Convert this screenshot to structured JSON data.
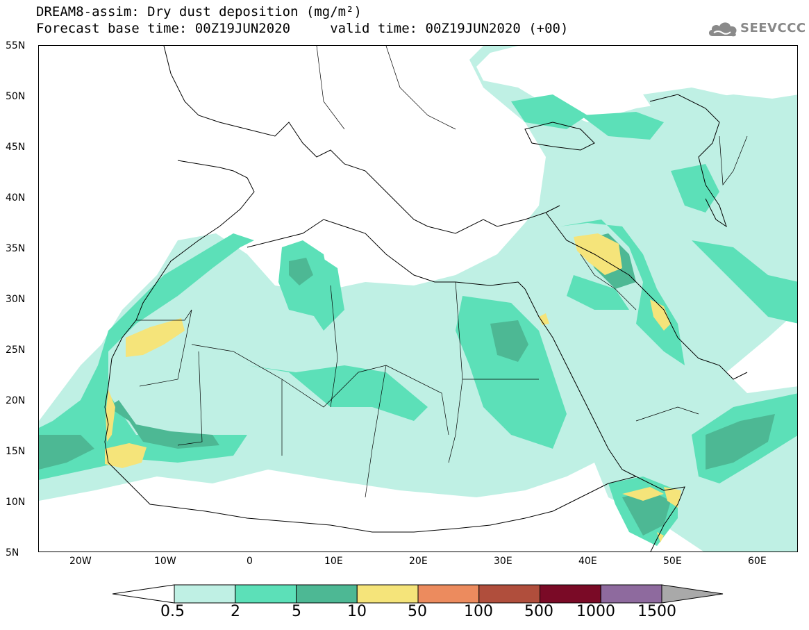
{
  "header": {
    "title_line1": "DREAM8-assim: Dry dust deposition (mg/m²)",
    "title_line2": "Forecast base time: 00Z19JUN2020     valid time: 00Z19JUN2020 (+00)"
  },
  "logo": {
    "text": "SEEVCCC",
    "icon": "cloud-logo-icon"
  },
  "map": {
    "lon_range": [
      -25,
      65
    ],
    "lat_range": [
      5,
      55
    ],
    "lat_labels": [
      "55N",
      "50N",
      "45N",
      "40N",
      "35N",
      "30N",
      "25N",
      "20N",
      "15N",
      "10N",
      "5N"
    ],
    "lon_labels": [
      "20W",
      "10W",
      "0",
      "10E",
      "20E",
      "30E",
      "40E",
      "50E",
      "60E"
    ],
    "colors": {
      "lev1": "#bff0e4",
      "lev2": "#5ce0b8",
      "lev3": "#4db894",
      "lev4": "#f5e47a"
    },
    "features": [
      {
        "name": "west-africa-coast",
        "level": 2
      },
      {
        "name": "mauritania-hotspot",
        "level": 4
      },
      {
        "name": "senegal-hotspot",
        "level": 4
      },
      {
        "name": "iraq-hotspot",
        "level": 4
      },
      {
        "name": "kuwait-hotspot",
        "level": 4
      },
      {
        "name": "somalia-hotspot",
        "level": 4
      },
      {
        "name": "egypt-plume",
        "level": 3
      }
    ]
  },
  "colorbar": {
    "labels": [
      "0.5",
      "2",
      "5",
      "10",
      "50",
      "100",
      "500",
      "1000",
      "1500"
    ],
    "colors": [
      "#bff0e4",
      "#5ce0b8",
      "#4db894",
      "#f5e47a",
      "#ec8b5e",
      "#b04e3c",
      "#7a0a26",
      "#8e6a9e"
    ],
    "under_color": "#ffffff",
    "over_color": "#a9a9a9"
  }
}
